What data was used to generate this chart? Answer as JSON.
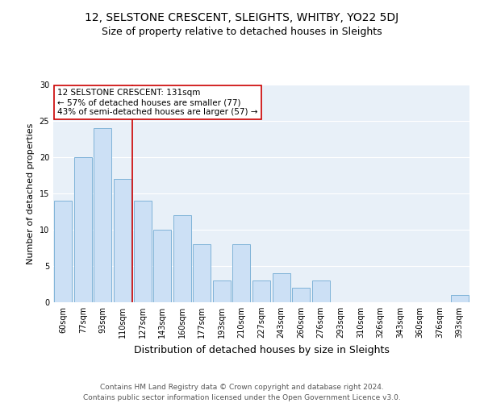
{
  "title1": "12, SELSTONE CRESCENT, SLEIGHTS, WHITBY, YO22 5DJ",
  "title2": "Size of property relative to detached houses in Sleights",
  "xlabel": "Distribution of detached houses by size in Sleights",
  "ylabel": "Number of detached properties",
  "categories": [
    "60sqm",
    "77sqm",
    "93sqm",
    "110sqm",
    "127sqm",
    "143sqm",
    "160sqm",
    "177sqm",
    "193sqm",
    "210sqm",
    "227sqm",
    "243sqm",
    "260sqm",
    "276sqm",
    "293sqm",
    "310sqm",
    "326sqm",
    "343sqm",
    "360sqm",
    "376sqm",
    "393sqm"
  ],
  "values": [
    14,
    20,
    24,
    17,
    14,
    10,
    12,
    8,
    3,
    8,
    3,
    4,
    2,
    3,
    0,
    0,
    0,
    0,
    0,
    0,
    1
  ],
  "bar_color": "#cce0f5",
  "bar_edge_color": "#7fb3d8",
  "vline_color": "#cc0000",
  "vline_index": 4,
  "annotation_text": "12 SELSTONE CRESCENT: 131sqm\n← 57% of detached houses are smaller (77)\n43% of semi-detached houses are larger (57) →",
  "annotation_box_color": "#ffffff",
  "annotation_box_edge": "#cc0000",
  "ylim": [
    0,
    30
  ],
  "yticks": [
    0,
    5,
    10,
    15,
    20,
    25,
    30
  ],
  "bg_color": "#e8f0f8",
  "plot_bg_color": "#e8f0f8",
  "footer": "Contains HM Land Registry data © Crown copyright and database right 2024.\nContains public sector information licensed under the Open Government Licence v3.0.",
  "title1_fontsize": 10,
  "title2_fontsize": 9,
  "xlabel_fontsize": 9,
  "ylabel_fontsize": 8,
  "tick_fontsize": 7,
  "footer_fontsize": 6.5,
  "annot_fontsize": 7.5
}
